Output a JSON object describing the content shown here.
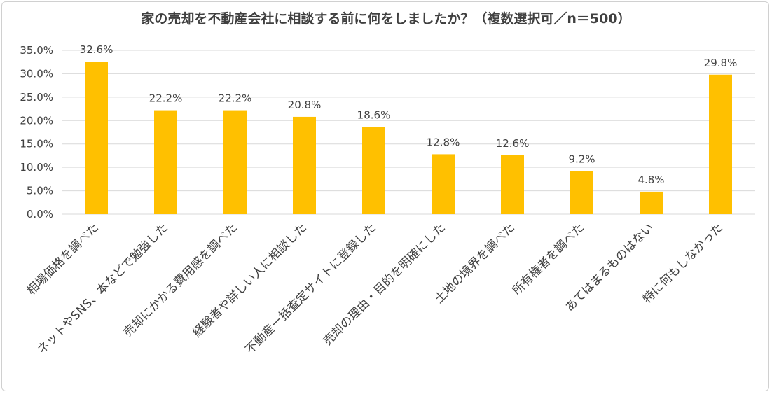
{
  "chart_data": {
    "type": "bar",
    "title": "家の売却を不動産会社に相談する前に何をしましたか？（複数選択可／n＝500）",
    "categories": [
      "相場価格を調べた",
      "ネットやSNS、本などで勉強した",
      "売却にかかる費用感を調べた",
      "経験者や詳しい人に相談した",
      "不動産一括査定サイトに登録した",
      "売却の理由・目的を明確にした",
      "土地の境界を調べた",
      "所有権者を調べた",
      "あてはまるものはない",
      "特に何もしなかった"
    ],
    "values": [
      32.6,
      22.2,
      22.2,
      20.8,
      18.6,
      12.8,
      12.6,
      9.2,
      4.8,
      29.8
    ],
    "value_labels": [
      "32.6%",
      "22.2%",
      "22.2%",
      "20.8%",
      "18.6%",
      "12.8%",
      "12.6%",
      "9.2%",
      "4.8%",
      "29.8%"
    ],
    "y_ticks": [
      "0.0%",
      "5.0%",
      "10.0%",
      "15.0%",
      "20.0%",
      "25.0%",
      "30.0%",
      "35.0%"
    ],
    "ylim": [
      0,
      35
    ],
    "xlabel": "",
    "ylabel": "",
    "grid": true,
    "bar_color": "#FFC000",
    "grid_color": "#d9d9d9"
  }
}
